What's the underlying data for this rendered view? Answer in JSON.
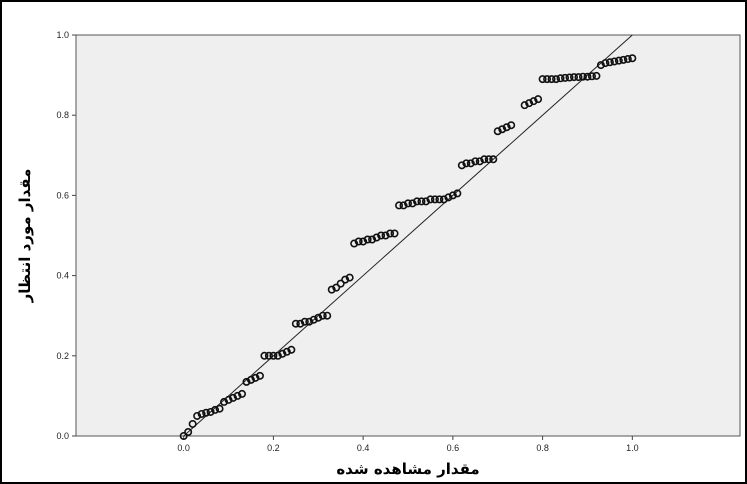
{
  "chart_data": {
    "type": "scatter",
    "title": "",
    "xlabel": "مقدار مشاهده شده",
    "ylabel": "مقدار مورد انتظار",
    "xlim": [
      -0.24,
      1.24
    ],
    "ylim": [
      0.0,
      1.0
    ],
    "x_ticks": [
      "0.0",
      "0.2",
      "0.4",
      "0.6",
      "0.8",
      "1.0"
    ],
    "y_ticks": [
      "0.0",
      "0.2",
      "0.4",
      "0.6",
      "0.8",
      "1.0"
    ],
    "grid": false,
    "legend": "none",
    "reference_line": {
      "from": [
        0.0,
        0.0
      ],
      "to": [
        1.0,
        1.0
      ]
    },
    "colors": {
      "plot_background": "#efefef",
      "points": "#111111",
      "line": "#222222"
    },
    "series": [
      {
        "x": [
          0.0,
          0.01,
          0.02,
          0.03,
          0.04,
          0.05,
          0.06,
          0.07,
          0.08,
          0.09,
          0.1,
          0.11,
          0.12,
          0.13,
          0.14,
          0.15,
          0.16,
          0.17,
          0.18,
          0.19,
          0.2,
          0.21,
          0.22,
          0.23,
          0.24,
          0.25,
          0.26,
          0.27,
          0.28,
          0.29,
          0.3,
          0.31,
          0.32,
          0.33,
          0.34,
          0.35,
          0.36,
          0.37,
          0.38,
          0.39,
          0.4,
          0.41,
          0.42,
          0.43,
          0.44,
          0.45,
          0.46,
          0.47,
          0.48,
          0.49,
          0.5,
          0.51,
          0.52,
          0.53,
          0.54,
          0.55,
          0.56,
          0.57,
          0.58,
          0.59,
          0.6,
          0.61,
          0.62,
          0.63,
          0.64,
          0.65,
          0.66,
          0.67,
          0.68,
          0.69,
          0.7,
          0.71,
          0.72,
          0.73,
          0.76,
          0.77,
          0.78,
          0.79,
          0.8,
          0.81,
          0.82,
          0.83,
          0.84,
          0.85,
          0.86,
          0.87,
          0.88,
          0.89,
          0.9,
          0.91,
          0.92,
          0.93,
          0.94,
          0.95,
          0.96,
          0.97,
          0.98,
          0.99,
          1.0
        ],
        "y": [
          0.0,
          0.01,
          0.03,
          0.05,
          0.055,
          0.058,
          0.06,
          0.065,
          0.068,
          0.085,
          0.09,
          0.095,
          0.1,
          0.105,
          0.135,
          0.14,
          0.145,
          0.15,
          0.2,
          0.2,
          0.2,
          0.2,
          0.205,
          0.21,
          0.215,
          0.28,
          0.28,
          0.285,
          0.285,
          0.29,
          0.295,
          0.3,
          0.3,
          0.365,
          0.37,
          0.38,
          0.39,
          0.395,
          0.48,
          0.485,
          0.485,
          0.49,
          0.49,
          0.495,
          0.5,
          0.5,
          0.505,
          0.505,
          0.575,
          0.575,
          0.58,
          0.58,
          0.585,
          0.585,
          0.585,
          0.59,
          0.59,
          0.59,
          0.59,
          0.595,
          0.6,
          0.605,
          0.675,
          0.68,
          0.68,
          0.685,
          0.685,
          0.69,
          0.69,
          0.69,
          0.76,
          0.765,
          0.77,
          0.775,
          0.825,
          0.83,
          0.835,
          0.84,
          0.89,
          0.89,
          0.89,
          0.89,
          0.892,
          0.893,
          0.894,
          0.895,
          0.895,
          0.896,
          0.896,
          0.897,
          0.898,
          0.925,
          0.93,
          0.932,
          0.934,
          0.936,
          0.938,
          0.94,
          0.942
        ]
      }
    ]
  }
}
